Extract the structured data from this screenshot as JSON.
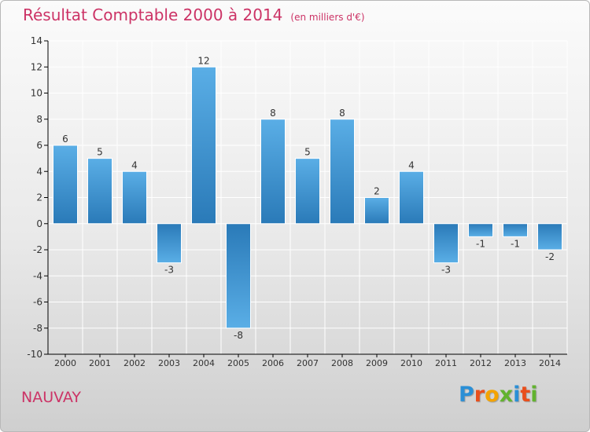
{
  "header": {
    "title": "Résultat Comptable 2000 à 2014",
    "unit": "(en milliers d'€)"
  },
  "footer": {
    "commune": "NAUVAY",
    "logo": "Proxiti"
  },
  "colors": {
    "accent": "#cc3366",
    "bar_light": "#5aaee6",
    "bar_dark": "#2a7ab8",
    "axis": "#000000",
    "grid": "#ffffff"
  },
  "chart_data": {
    "type": "bar",
    "title": "Résultat Comptable 2000 à 2014",
    "subtitle": "(en milliers d'€)",
    "xlabel": "",
    "ylabel": "",
    "categories": [
      "2000",
      "2001",
      "2002",
      "2003",
      "2004",
      "2005",
      "2006",
      "2007",
      "2008",
      "2009",
      "2010",
      "2011",
      "2012",
      "2013",
      "2014"
    ],
    "values": [
      6,
      5,
      4,
      -3,
      12,
      -8,
      8,
      5,
      8,
      2,
      4,
      -3,
      -1,
      -1,
      -2
    ],
    "ylim": [
      -10,
      14
    ],
    "yticks": [
      -10,
      -8,
      -6,
      -4,
      -2,
      0,
      2,
      4,
      6,
      8,
      10,
      12,
      14
    ],
    "grid": true,
    "legend": "none"
  }
}
